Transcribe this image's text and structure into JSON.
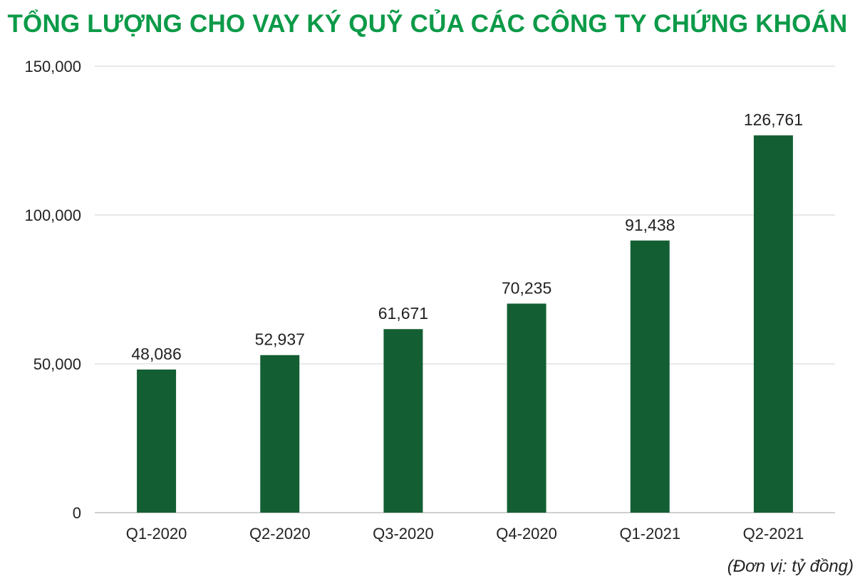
{
  "chart_data": {
    "type": "bar",
    "title": "TỔNG LƯỢNG CHO VAY KÝ QUỸ CỦA CÁC CÔNG TY CHỨNG KHOÁN",
    "categories": [
      "Q1-2020",
      "Q2-2020",
      "Q3-2020",
      "Q4-2020",
      "Q1-2021",
      "Q2-2021"
    ],
    "values": [
      48086,
      52937,
      61671,
      70235,
      91438,
      126761
    ],
    "value_labels": [
      "48,086",
      "52,937",
      "61,671",
      "70,235",
      "91,438",
      "126,761"
    ],
    "ylim": [
      0,
      150000
    ],
    "yticks": [
      0,
      50000,
      100000,
      150000
    ],
    "ytick_labels": [
      "0",
      "50,000",
      "100,000",
      "150,000"
    ],
    "xlabel": "",
    "ylabel": "",
    "unit_note": "(Đơn vị: tỷ đồng)",
    "grid": true,
    "legend": "none"
  },
  "colors": {
    "title": "#0c9a48",
    "bar": "#135f33",
    "grid": "#d9d9d9",
    "axis_text": "#222222"
  }
}
